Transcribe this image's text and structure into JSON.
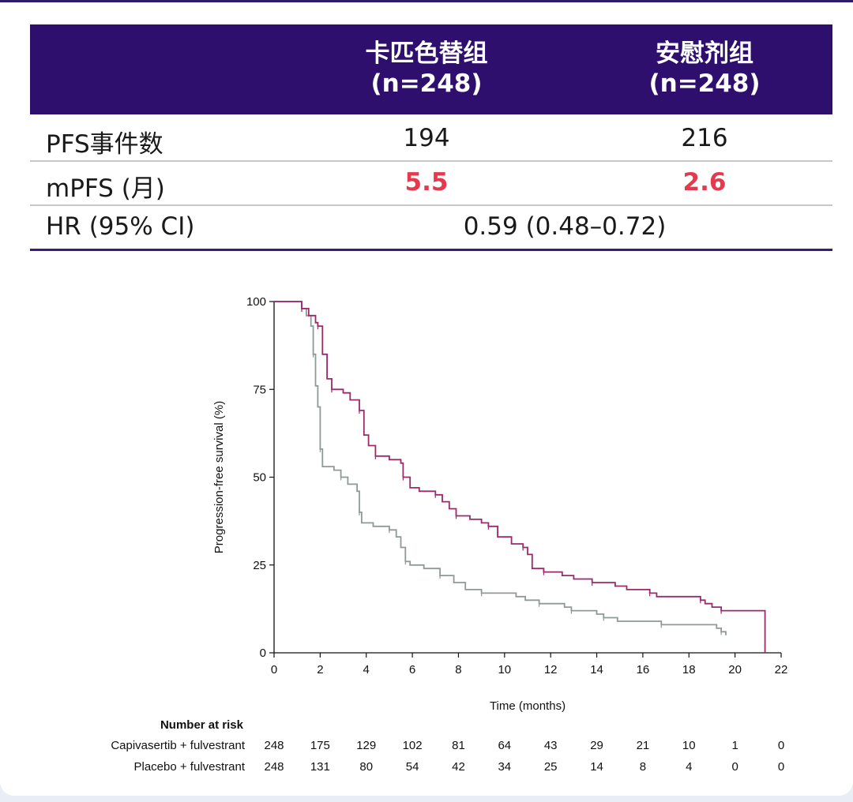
{
  "table": {
    "header": {
      "col1_name": "卡匹色替组",
      "col1_n": "(n=248)",
      "col2_name": "安慰剂组",
      "col2_n": "(n=248)"
    },
    "rows": [
      {
        "label": "PFS事件数",
        "v1": "194",
        "v2": "216"
      },
      {
        "label": "mPFS (月)",
        "v1": "5.5",
        "v2": "2.6"
      },
      {
        "label": "HR (95% CI)",
        "span": "0.59 (0.48–0.72)"
      }
    ]
  },
  "chart_data": {
    "type": "line",
    "ylabel": "Progression-free survival (%)",
    "xlabel": "Time (months)",
    "xlim": [
      0,
      22
    ],
    "ylim": [
      0,
      100
    ],
    "xticks": [
      0,
      2,
      4,
      6,
      8,
      10,
      12,
      14,
      16,
      18,
      20,
      22
    ],
    "yticks": [
      0,
      25,
      50,
      75,
      100
    ],
    "colors": {
      "capivasertib": "#9b2a6b",
      "placebo": "#8f9a97"
    },
    "series": [
      {
        "name": "Capivasertib + fulvestrant",
        "points": [
          [
            0,
            100
          ],
          [
            0.8,
            100
          ],
          [
            1.2,
            98
          ],
          [
            1.5,
            96
          ],
          [
            1.8,
            94
          ],
          [
            1.9,
            93
          ],
          [
            2.1,
            85
          ],
          [
            2.3,
            78
          ],
          [
            2.5,
            75
          ],
          [
            3.0,
            74
          ],
          [
            3.3,
            72
          ],
          [
            3.7,
            69
          ],
          [
            3.9,
            62
          ],
          [
            4.1,
            59
          ],
          [
            4.4,
            56
          ],
          [
            5.0,
            55
          ],
          [
            5.5,
            54
          ],
          [
            5.6,
            50
          ],
          [
            5.9,
            47
          ],
          [
            6.3,
            46
          ],
          [
            7.0,
            45
          ],
          [
            7.3,
            43
          ],
          [
            7.6,
            41
          ],
          [
            7.9,
            39
          ],
          [
            8.5,
            38
          ],
          [
            9.0,
            37
          ],
          [
            9.3,
            36
          ],
          [
            9.7,
            33
          ],
          [
            10.3,
            31
          ],
          [
            10.8,
            30
          ],
          [
            11.0,
            28
          ],
          [
            11.2,
            24
          ],
          [
            11.7,
            23
          ],
          [
            12.5,
            22
          ],
          [
            13.0,
            21
          ],
          [
            13.8,
            20
          ],
          [
            14.8,
            19
          ],
          [
            15.3,
            18
          ],
          [
            16.3,
            17
          ],
          [
            16.6,
            16
          ],
          [
            17.5,
            16
          ],
          [
            18.5,
            15
          ],
          [
            18.7,
            14
          ],
          [
            19.0,
            13
          ],
          [
            19.4,
            12
          ],
          [
            20.5,
            12
          ],
          [
            21.3,
            12
          ],
          [
            21.3,
            0
          ]
        ]
      },
      {
        "name": "Placebo + fulvestrant",
        "points": [
          [
            0,
            100
          ],
          [
            0.8,
            100
          ],
          [
            1.2,
            98
          ],
          [
            1.4,
            96
          ],
          [
            1.6,
            93
          ],
          [
            1.7,
            85
          ],
          [
            1.8,
            76
          ],
          [
            1.9,
            70
          ],
          [
            2.0,
            58
          ],
          [
            2.1,
            53
          ],
          [
            2.6,
            52
          ],
          [
            2.9,
            50
          ],
          [
            3.2,
            48
          ],
          [
            3.6,
            46
          ],
          [
            3.7,
            40
          ],
          [
            3.8,
            37
          ],
          [
            4.3,
            36
          ],
          [
            5.0,
            35
          ],
          [
            5.3,
            33
          ],
          [
            5.5,
            30
          ],
          [
            5.7,
            26
          ],
          [
            5.9,
            25
          ],
          [
            6.5,
            24
          ],
          [
            7.2,
            22
          ],
          [
            7.8,
            20
          ],
          [
            8.3,
            18
          ],
          [
            9.0,
            17
          ],
          [
            10.5,
            16
          ],
          [
            10.9,
            15
          ],
          [
            11.5,
            14
          ],
          [
            12.2,
            14
          ],
          [
            12.6,
            13
          ],
          [
            12.9,
            12
          ],
          [
            13.7,
            12
          ],
          [
            14.0,
            11
          ],
          [
            14.3,
            10
          ],
          [
            14.9,
            9
          ],
          [
            16.0,
            9
          ],
          [
            16.8,
            8
          ],
          [
            17.5,
            8
          ],
          [
            19.2,
            7
          ],
          [
            19.4,
            6
          ],
          [
            19.6,
            5
          ]
        ]
      }
    ],
    "risk_table": {
      "title": "Number at risk",
      "times": [
        0,
        2,
        4,
        6,
        8,
        10,
        12,
        14,
        16,
        18,
        20,
        22
      ],
      "rows": [
        {
          "label": "Capivasertib + fulvestrant",
          "values": [
            248,
            175,
            129,
            102,
            81,
            64,
            43,
            29,
            21,
            10,
            1,
            0
          ]
        },
        {
          "label": "Placebo + fulvestrant",
          "values": [
            248,
            131,
            80,
            54,
            42,
            34,
            25,
            14,
            8,
            4,
            0,
            0
          ]
        }
      ]
    }
  }
}
